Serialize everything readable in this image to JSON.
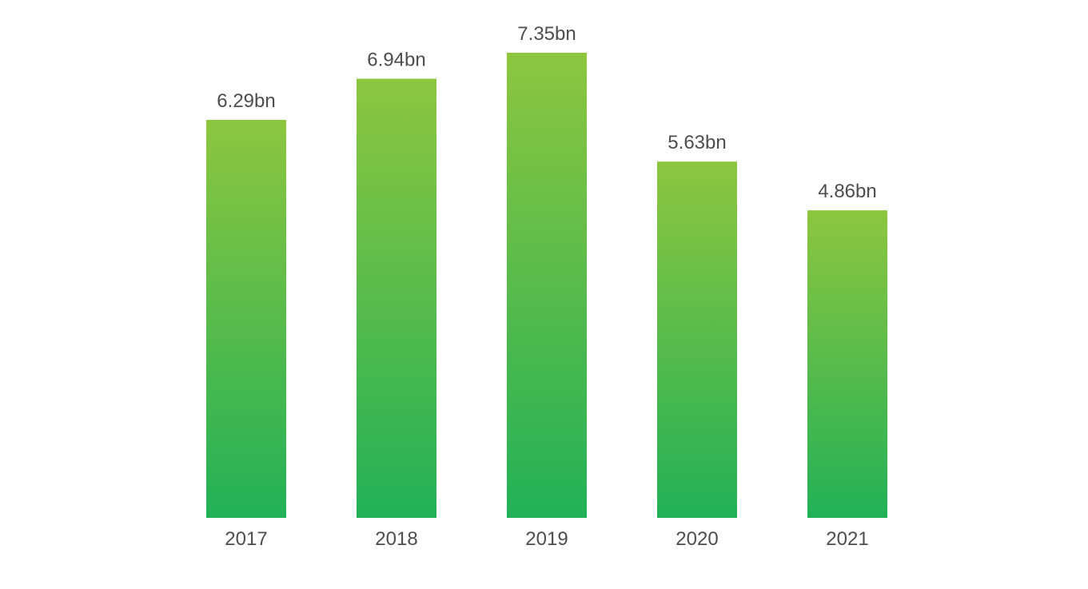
{
  "chart_data": {
    "type": "bar",
    "title": "",
    "xlabel": "",
    "ylabel": "",
    "categories": [
      "2017",
      "2018",
      "2019",
      "2020",
      "2021"
    ],
    "values": [
      6.29,
      6.94,
      7.35,
      5.63,
      4.86
    ],
    "data_labels": [
      "6.29bn",
      "6.94bn",
      "7.35bn",
      "5.63bn",
      "4.86bn"
    ],
    "unit": "bn",
    "ylim": [
      0,
      7.35
    ],
    "grid": false,
    "legend": "none",
    "colors": {
      "bar_top": "#8dc63f",
      "bar_bottom": "#22b157",
      "label_text": "#4d4d4d"
    }
  }
}
